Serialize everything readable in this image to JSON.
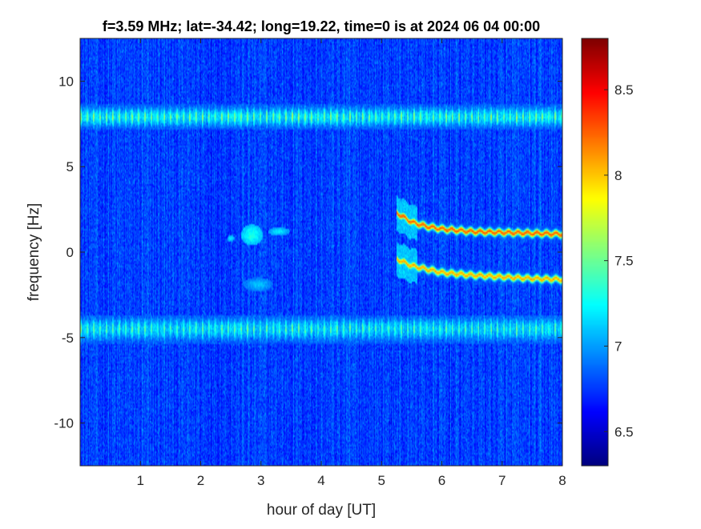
{
  "chart_data": {
    "type": "heatmap",
    "title": "f=3.59 MHz;  lat=-34.42; long=19.22, time=0 is at 2024 06 04 00:00",
    "xlabel": "hour of day [UT]",
    "ylabel": "frequency [Hz]",
    "xlim": [
      0,
      8
    ],
    "ylim": [
      -12.5,
      12.5
    ],
    "x_ticks": [
      1,
      2,
      3,
      4,
      5,
      6,
      7,
      8
    ],
    "y_ticks": [
      -10,
      -5,
      0,
      5,
      10
    ],
    "colorbar": {
      "colormap": "jet",
      "range": [
        6.3,
        8.8
      ],
      "ticks": [
        6.5,
        7,
        7.5,
        8,
        8.5
      ]
    },
    "background_level": 6.75,
    "bands": [
      {
        "name": "upper",
        "y_center": 7.9,
        "halfwidth": 0.6,
        "level": 7.5
      },
      {
        "name": "lower",
        "y_center": -4.5,
        "halfwidth": 0.7,
        "level": 7.4
      }
    ],
    "traces": [
      {
        "name": "upper",
        "level": 8.3,
        "points": [
          [
            5.25,
            2.3
          ],
          [
            5.5,
            1.75
          ],
          [
            5.75,
            1.5
          ],
          [
            6.0,
            1.35
          ],
          [
            6.5,
            1.2
          ],
          [
            7.0,
            1.15
          ],
          [
            7.5,
            1.1
          ],
          [
            8.0,
            1.05
          ]
        ]
      },
      {
        "name": "lower",
        "level": 8.1,
        "points": [
          [
            5.25,
            -0.4
          ],
          [
            5.5,
            -0.8
          ],
          [
            5.75,
            -1.0
          ],
          [
            6.0,
            -1.2
          ],
          [
            6.5,
            -1.35
          ],
          [
            7.0,
            -1.45
          ],
          [
            7.5,
            -1.55
          ],
          [
            8.0,
            -1.6
          ]
        ]
      }
    ],
    "patches": [
      {
        "x": 2.85,
        "y": 1.0,
        "rx": 0.15,
        "ry": 0.5,
        "level": 7.3
      },
      {
        "x": 3.3,
        "y": 1.2,
        "rx": 0.15,
        "ry": 0.2,
        "level": 7.2
      },
      {
        "x": 2.5,
        "y": 0.8,
        "rx": 0.05,
        "ry": 0.15,
        "level": 7.2
      },
      {
        "x": 2.95,
        "y": -1.9,
        "rx": 0.2,
        "ry": 0.35,
        "level": 7.1
      }
    ]
  }
}
